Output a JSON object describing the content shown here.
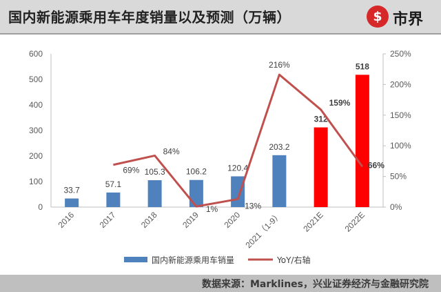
{
  "header": {
    "title": "国内新能源乘用车年度销量以及预测（万辆）",
    "logo_mark": "$",
    "logo_text": "市界"
  },
  "footer": {
    "source": "数据来源：Marklines，兴业证券经济与金融研究院"
  },
  "colors": {
    "bar_actual": "#4f81bd",
    "bar_forecast": "#ff0000",
    "line": "#c0504d",
    "forecast_label": "#c00000"
  },
  "chart_data": {
    "type": "bar",
    "categories": [
      "2016",
      "2017",
      "2018",
      "2019",
      "2020",
      "2021（1-9）",
      "2021E",
      "2022E"
    ],
    "series": [
      {
        "name": "国内新能源乘用车销量",
        "type": "bar",
        "axis": "left",
        "values": [
          33.7,
          57.1,
          105.3,
          106.2,
          120.4,
          203.2,
          312,
          518
        ],
        "labels": [
          "33.7",
          "57.1",
          "105.3",
          "106.2",
          "120.4",
          "203.2",
          "312",
          "518"
        ],
        "forecast": [
          false,
          false,
          false,
          false,
          false,
          false,
          true,
          true
        ]
      },
      {
        "name": "YoY/右轴",
        "type": "line",
        "axis": "right",
        "values": [
          null,
          69,
          84,
          1,
          13,
          216,
          159,
          66
        ],
        "labels": [
          "",
          "69%",
          "84%",
          "1%",
          "13%",
          "216%",
          "159%",
          "66%"
        ]
      }
    ],
    "y_left": {
      "min": 0,
      "max": 600,
      "ticks": [
        "0",
        "100",
        "200",
        "300",
        "400",
        "500",
        "600"
      ]
    },
    "y_right": {
      "min": 0,
      "max": 250,
      "ticks": [
        "0%",
        "50%",
        "100%",
        "150%",
        "200%",
        "250%"
      ]
    },
    "grid": false,
    "legend_position": "bottom"
  }
}
